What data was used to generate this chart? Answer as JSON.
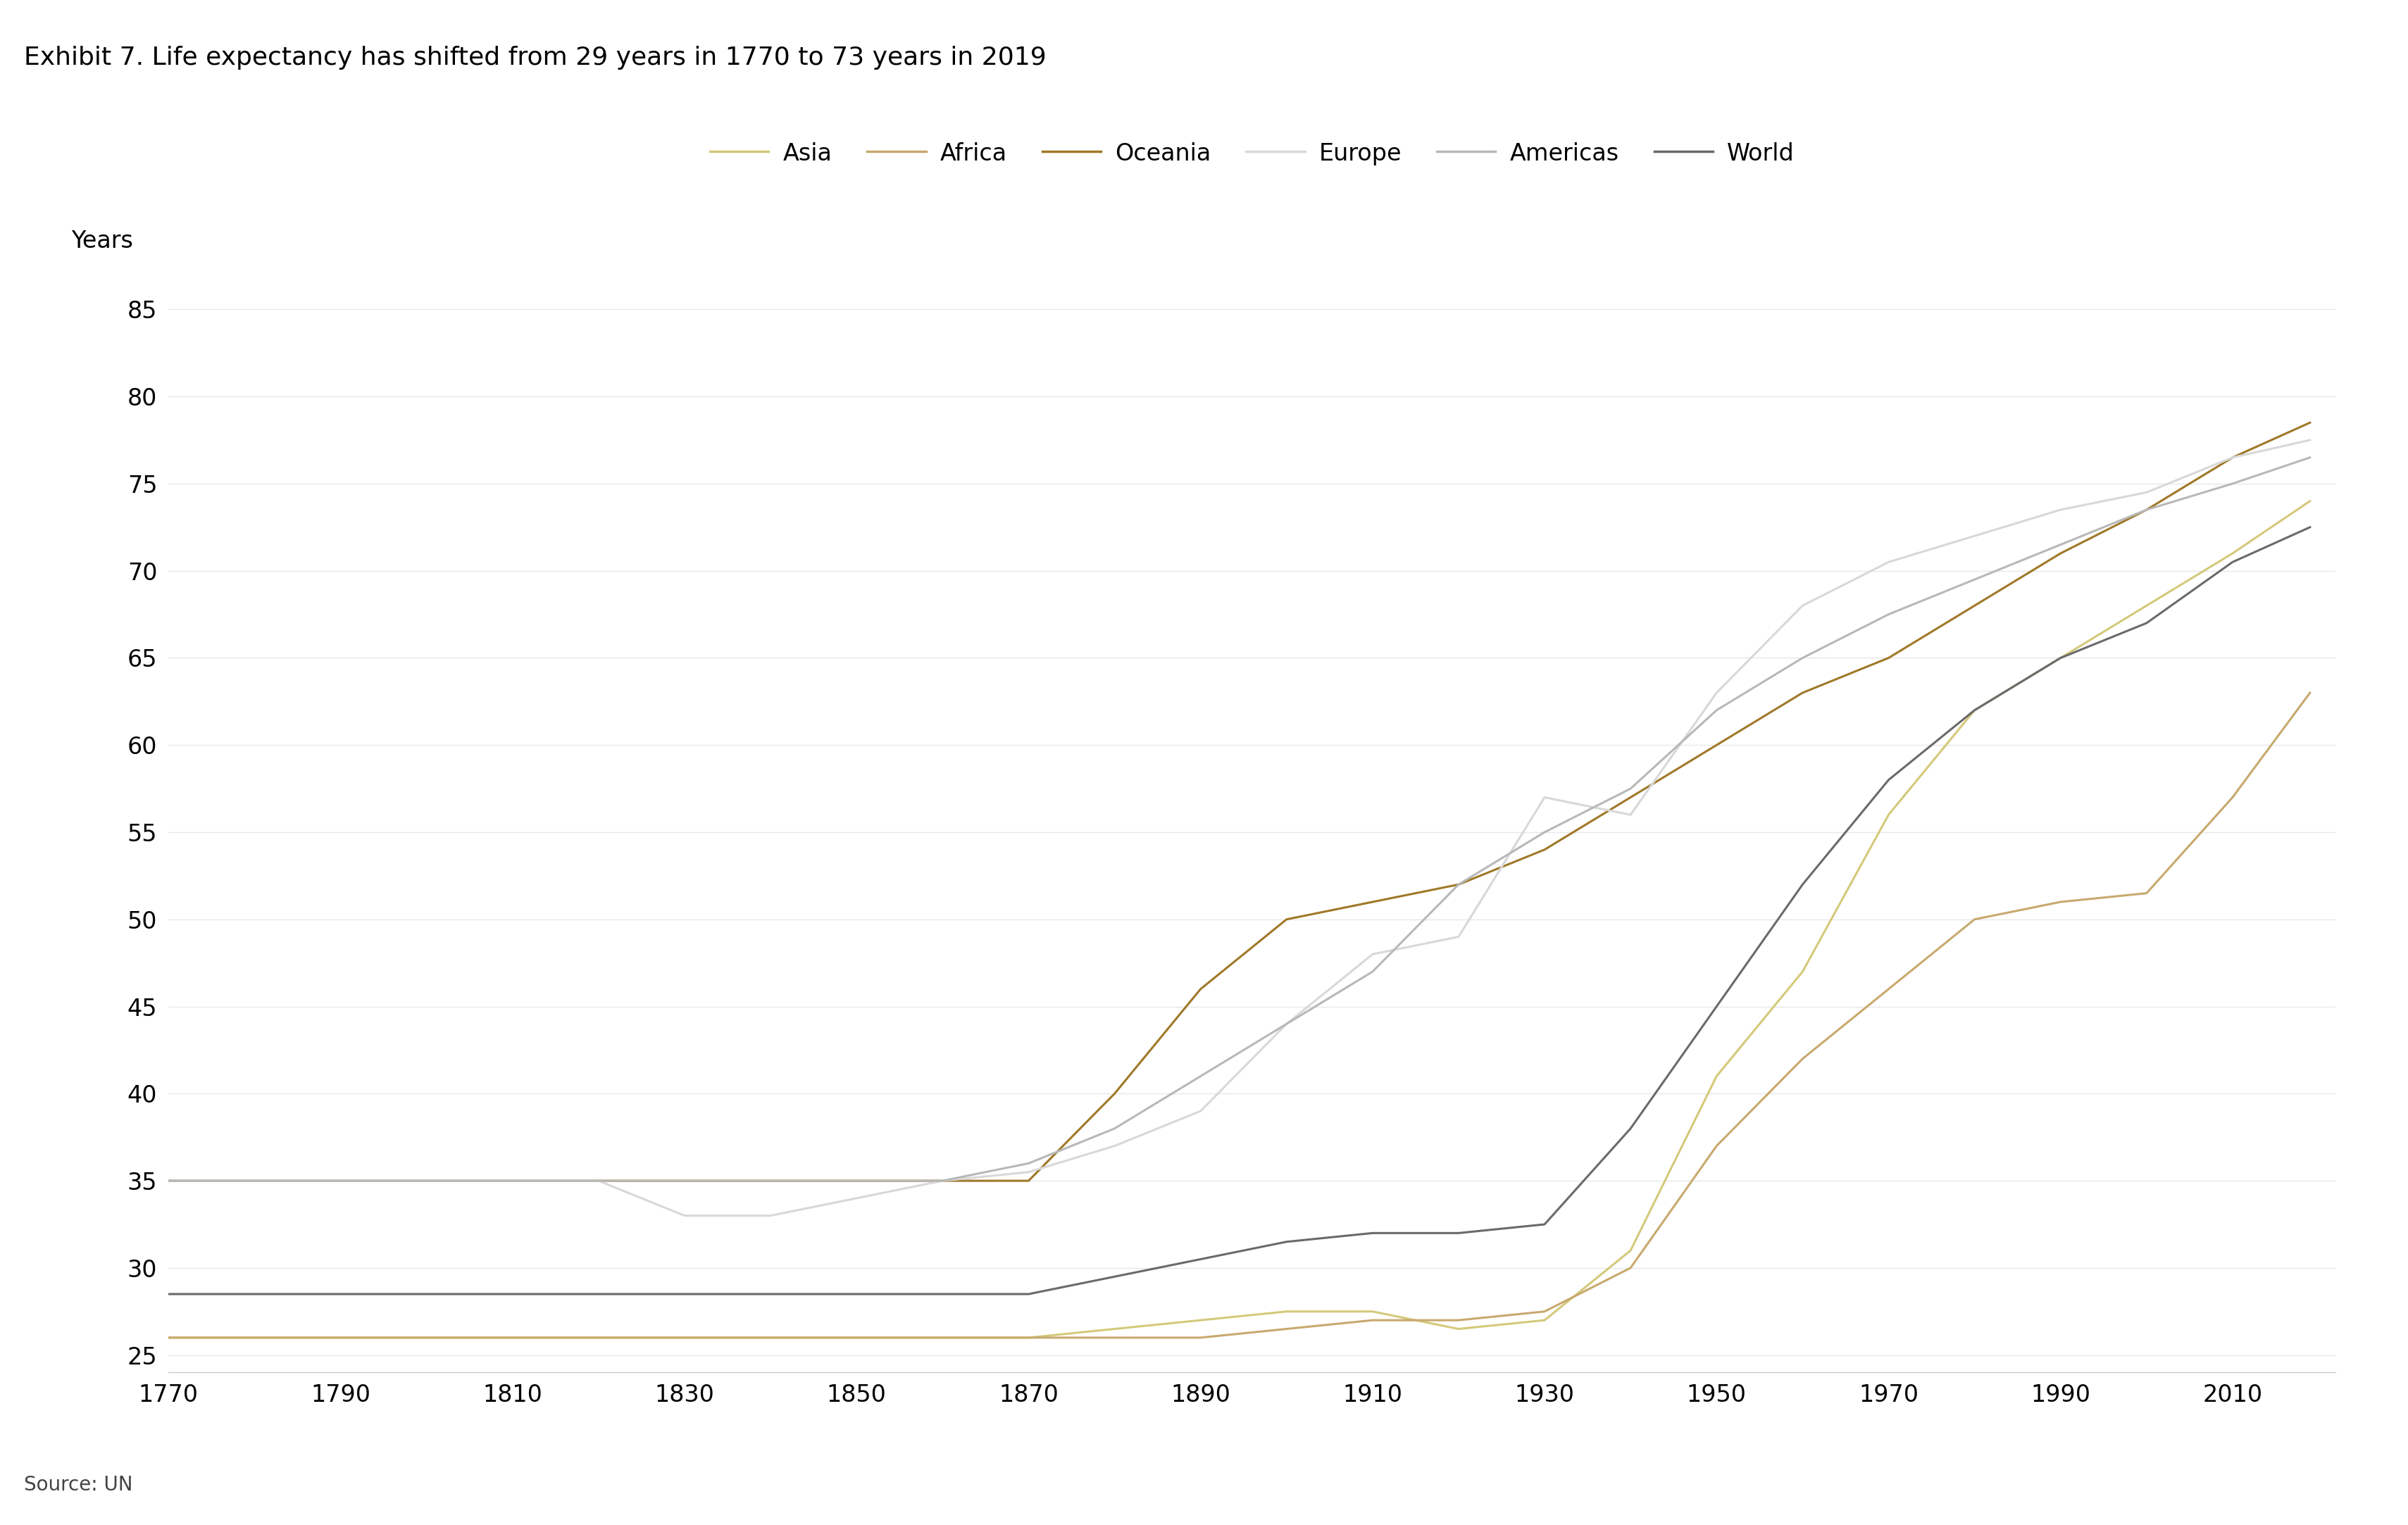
{
  "title": "Exhibit 7. Life expectancy has shifted from 29 years in 1770 to 73 years in 2019",
  "ylabel": "Years",
  "source": "Source: UN",
  "background_color": "#ffffff",
  "ylim": [
    24,
    87
  ],
  "yticks": [
    25,
    30,
    35,
    40,
    45,
    50,
    55,
    60,
    65,
    70,
    75,
    80,
    85
  ],
  "xlim": [
    1770,
    2022
  ],
  "xticks": [
    1770,
    1790,
    1810,
    1830,
    1850,
    1870,
    1890,
    1910,
    1930,
    1950,
    1970,
    1990,
    2010
  ],
  "series": {
    "Asia": {
      "color": "#d4c97a",
      "data": {
        "1770": 26.0,
        "1780": 26.0,
        "1790": 26.0,
        "1800": 26.0,
        "1810": 26.0,
        "1820": 26.0,
        "1830": 26.0,
        "1840": 26.0,
        "1850": 26.0,
        "1860": 26.0,
        "1870": 26.0,
        "1880": 26.5,
        "1890": 27.0,
        "1900": 27.5,
        "1910": 27.5,
        "1920": 26.5,
        "1930": 27.0,
        "1940": 31.0,
        "1950": 41.0,
        "1960": 47.0,
        "1970": 56.0,
        "1980": 62.0,
        "1990": 65.0,
        "2000": 68.0,
        "2010": 71.0,
        "2019": 74.0
      }
    },
    "Africa": {
      "color": "#c8a96e",
      "data": {
        "1770": 26.0,
        "1780": 26.0,
        "1790": 26.0,
        "1800": 26.0,
        "1810": 26.0,
        "1820": 26.0,
        "1830": 26.0,
        "1840": 26.0,
        "1850": 26.0,
        "1860": 26.0,
        "1870": 26.0,
        "1880": 26.0,
        "1890": 26.0,
        "1900": 26.5,
        "1910": 27.0,
        "1920": 27.0,
        "1930": 27.5,
        "1940": 30.0,
        "1950": 37.0,
        "1960": 42.0,
        "1970": 46.0,
        "1980": 50.0,
        "1990": 51.0,
        "2000": 51.5,
        "2010": 57.0,
        "2019": 63.0
      }
    },
    "Oceania": {
      "color": "#a07828",
      "data": {
        "1770": 35.0,
        "1780": 35.0,
        "1790": 35.0,
        "1800": 35.0,
        "1810": 35.0,
        "1820": 35.0,
        "1830": 35.0,
        "1840": 35.0,
        "1850": 35.0,
        "1860": 35.0,
        "1870": 35.0,
        "1880": 40.0,
        "1890": 46.0,
        "1900": 50.0,
        "1910": 51.0,
        "1920": 52.0,
        "1930": 54.0,
        "1940": 57.0,
        "1950": 60.0,
        "1960": 63.0,
        "1970": 65.0,
        "1980": 68.0,
        "1990": 71.0,
        "2000": 73.5,
        "2010": 76.5,
        "2019": 78.5
      }
    },
    "Europe": {
      "color": "#d8d8d8",
      "data": {
        "1770": 35.0,
        "1780": 35.0,
        "1790": 35.0,
        "1800": 35.0,
        "1810": 35.0,
        "1820": 35.0,
        "1830": 33.0,
        "1840": 33.0,
        "1850": 34.0,
        "1860": 35.0,
        "1870": 35.5,
        "1880": 37.0,
        "1890": 39.0,
        "1900": 44.0,
        "1910": 48.0,
        "1920": 49.0,
        "1930": 57.0,
        "1940": 56.0,
        "1950": 63.0,
        "1960": 68.0,
        "1970": 70.5,
        "1980": 72.0,
        "1990": 73.5,
        "2000": 74.5,
        "2010": 76.5,
        "2019": 77.5
      }
    },
    "Americas": {
      "color": "#b8b8b8",
      "data": {
        "1770": 35.0,
        "1780": 35.0,
        "1790": 35.0,
        "1800": 35.0,
        "1810": 35.0,
        "1820": 35.0,
        "1830": 35.0,
        "1840": 35.0,
        "1850": 35.0,
        "1860": 35.0,
        "1870": 36.0,
        "1880": 38.0,
        "1890": 41.0,
        "1900": 44.0,
        "1910": 47.0,
        "1920": 52.0,
        "1930": 55.0,
        "1940": 57.5,
        "1950": 62.0,
        "1960": 65.0,
        "1970": 67.5,
        "1980": 69.5,
        "1990": 71.5,
        "2000": 73.5,
        "2010": 75.0,
        "2019": 76.5
      }
    },
    "World": {
      "color": "#6a6a6a",
      "data": {
        "1770": 28.5,
        "1780": 28.5,
        "1790": 28.5,
        "1800": 28.5,
        "1810": 28.5,
        "1820": 28.5,
        "1830": 28.5,
        "1840": 28.5,
        "1850": 28.5,
        "1860": 28.5,
        "1870": 28.5,
        "1880": 29.5,
        "1890": 30.5,
        "1900": 31.5,
        "1910": 32.0,
        "1920": 32.0,
        "1930": 32.5,
        "1940": 38.0,
        "1950": 45.0,
        "1960": 52.0,
        "1970": 58.0,
        "1980": 62.0,
        "1990": 65.0,
        "2000": 67.0,
        "2010": 70.5,
        "2019": 72.5
      }
    }
  },
  "legend_order": [
    "Asia",
    "Africa",
    "Oceania",
    "Europe",
    "Americas",
    "World"
  ],
  "line_width": 2.2
}
